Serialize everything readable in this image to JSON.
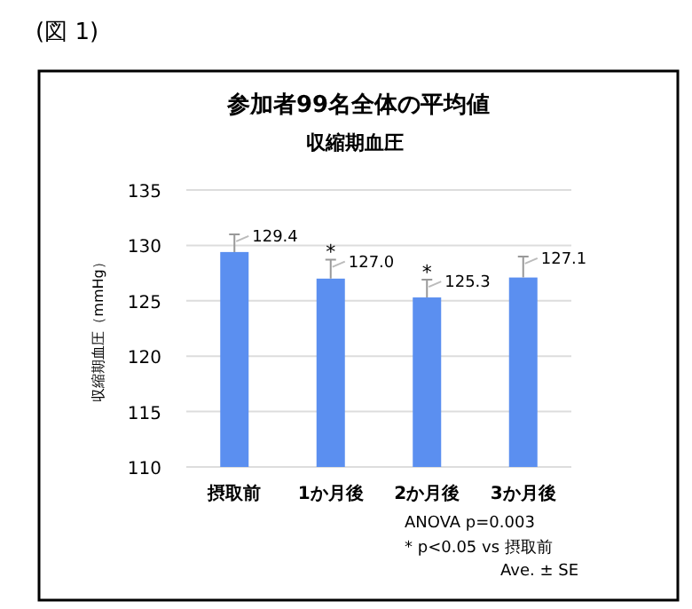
{
  "chart_data": {
    "type": "bar",
    "title": "参加者99名全体の平均値",
    "subtitle": "収縮期血圧",
    "ylabel": "収縮期血圧（mmHg）",
    "categories": [
      "摂取前",
      "1か月後",
      "2か月後",
      "3か月後"
    ],
    "values": [
      129.4,
      127.0,
      125.3,
      127.1
    ],
    "value_labels": [
      "129.4",
      "127.0",
      "125.3",
      "127.1"
    ],
    "errors": [
      [
        129.4,
        131.0
      ],
      [
        127.0,
        128.7
      ],
      [
        125.3,
        126.9
      ],
      [
        127.1,
        129.0
      ]
    ],
    "color": "#5b8ff0",
    "ylim": [
      110,
      135
    ],
    "yticks": [
      110,
      115,
      120,
      125,
      130,
      135
    ],
    "grid": "y",
    "annotations": [
      {
        "text": "(図 1)"
      },
      "*",
      "*",
      {
        "text": "ANOVA p=0.003"
      },
      {
        "text": "* p<0.05 vs 摂取前"
      },
      {
        "text": "Ave. ± SE"
      }
    ]
  }
}
